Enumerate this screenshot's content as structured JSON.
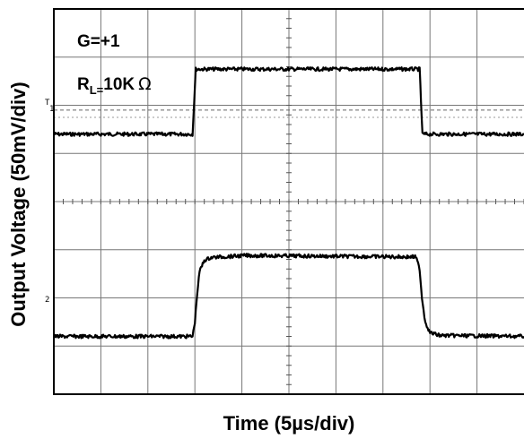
{
  "chart_data": {
    "type": "line",
    "title": "",
    "xlabel": "Time (5µs/div)",
    "ylabel": "Output Voltage (50mV/div)",
    "annotations": {
      "gain": "G=+1",
      "load_prefix": "R",
      "load_sub": "L=",
      "load_value": "10K",
      "load_unit": "Ω"
    },
    "x_divisions": 10,
    "y_divisions": 8,
    "xlim": [
      0,
      10
    ],
    "ylim": [
      0,
      8
    ],
    "channel_markers": [
      "1",
      "2"
    ],
    "trigger_marker": "T",
    "series": [
      {
        "channel": "1",
        "x": [
          0,
          2.95,
          3.02,
          7.78,
          7.84,
          10
        ],
        "y": [
          5.4,
          5.4,
          6.75,
          6.75,
          5.4,
          5.4
        ]
      },
      {
        "channel": "2",
        "x": [
          0,
          2.95,
          3.0,
          3.05,
          3.1,
          3.2,
          3.35,
          4.1,
          7.7,
          7.78,
          7.83,
          7.9,
          8.0,
          8.2,
          10
        ],
        "y": [
          1.2,
          1.2,
          1.5,
          2.1,
          2.55,
          2.78,
          2.84,
          2.88,
          2.85,
          2.6,
          2.0,
          1.5,
          1.28,
          1.22,
          1.2
        ]
      }
    ]
  }
}
